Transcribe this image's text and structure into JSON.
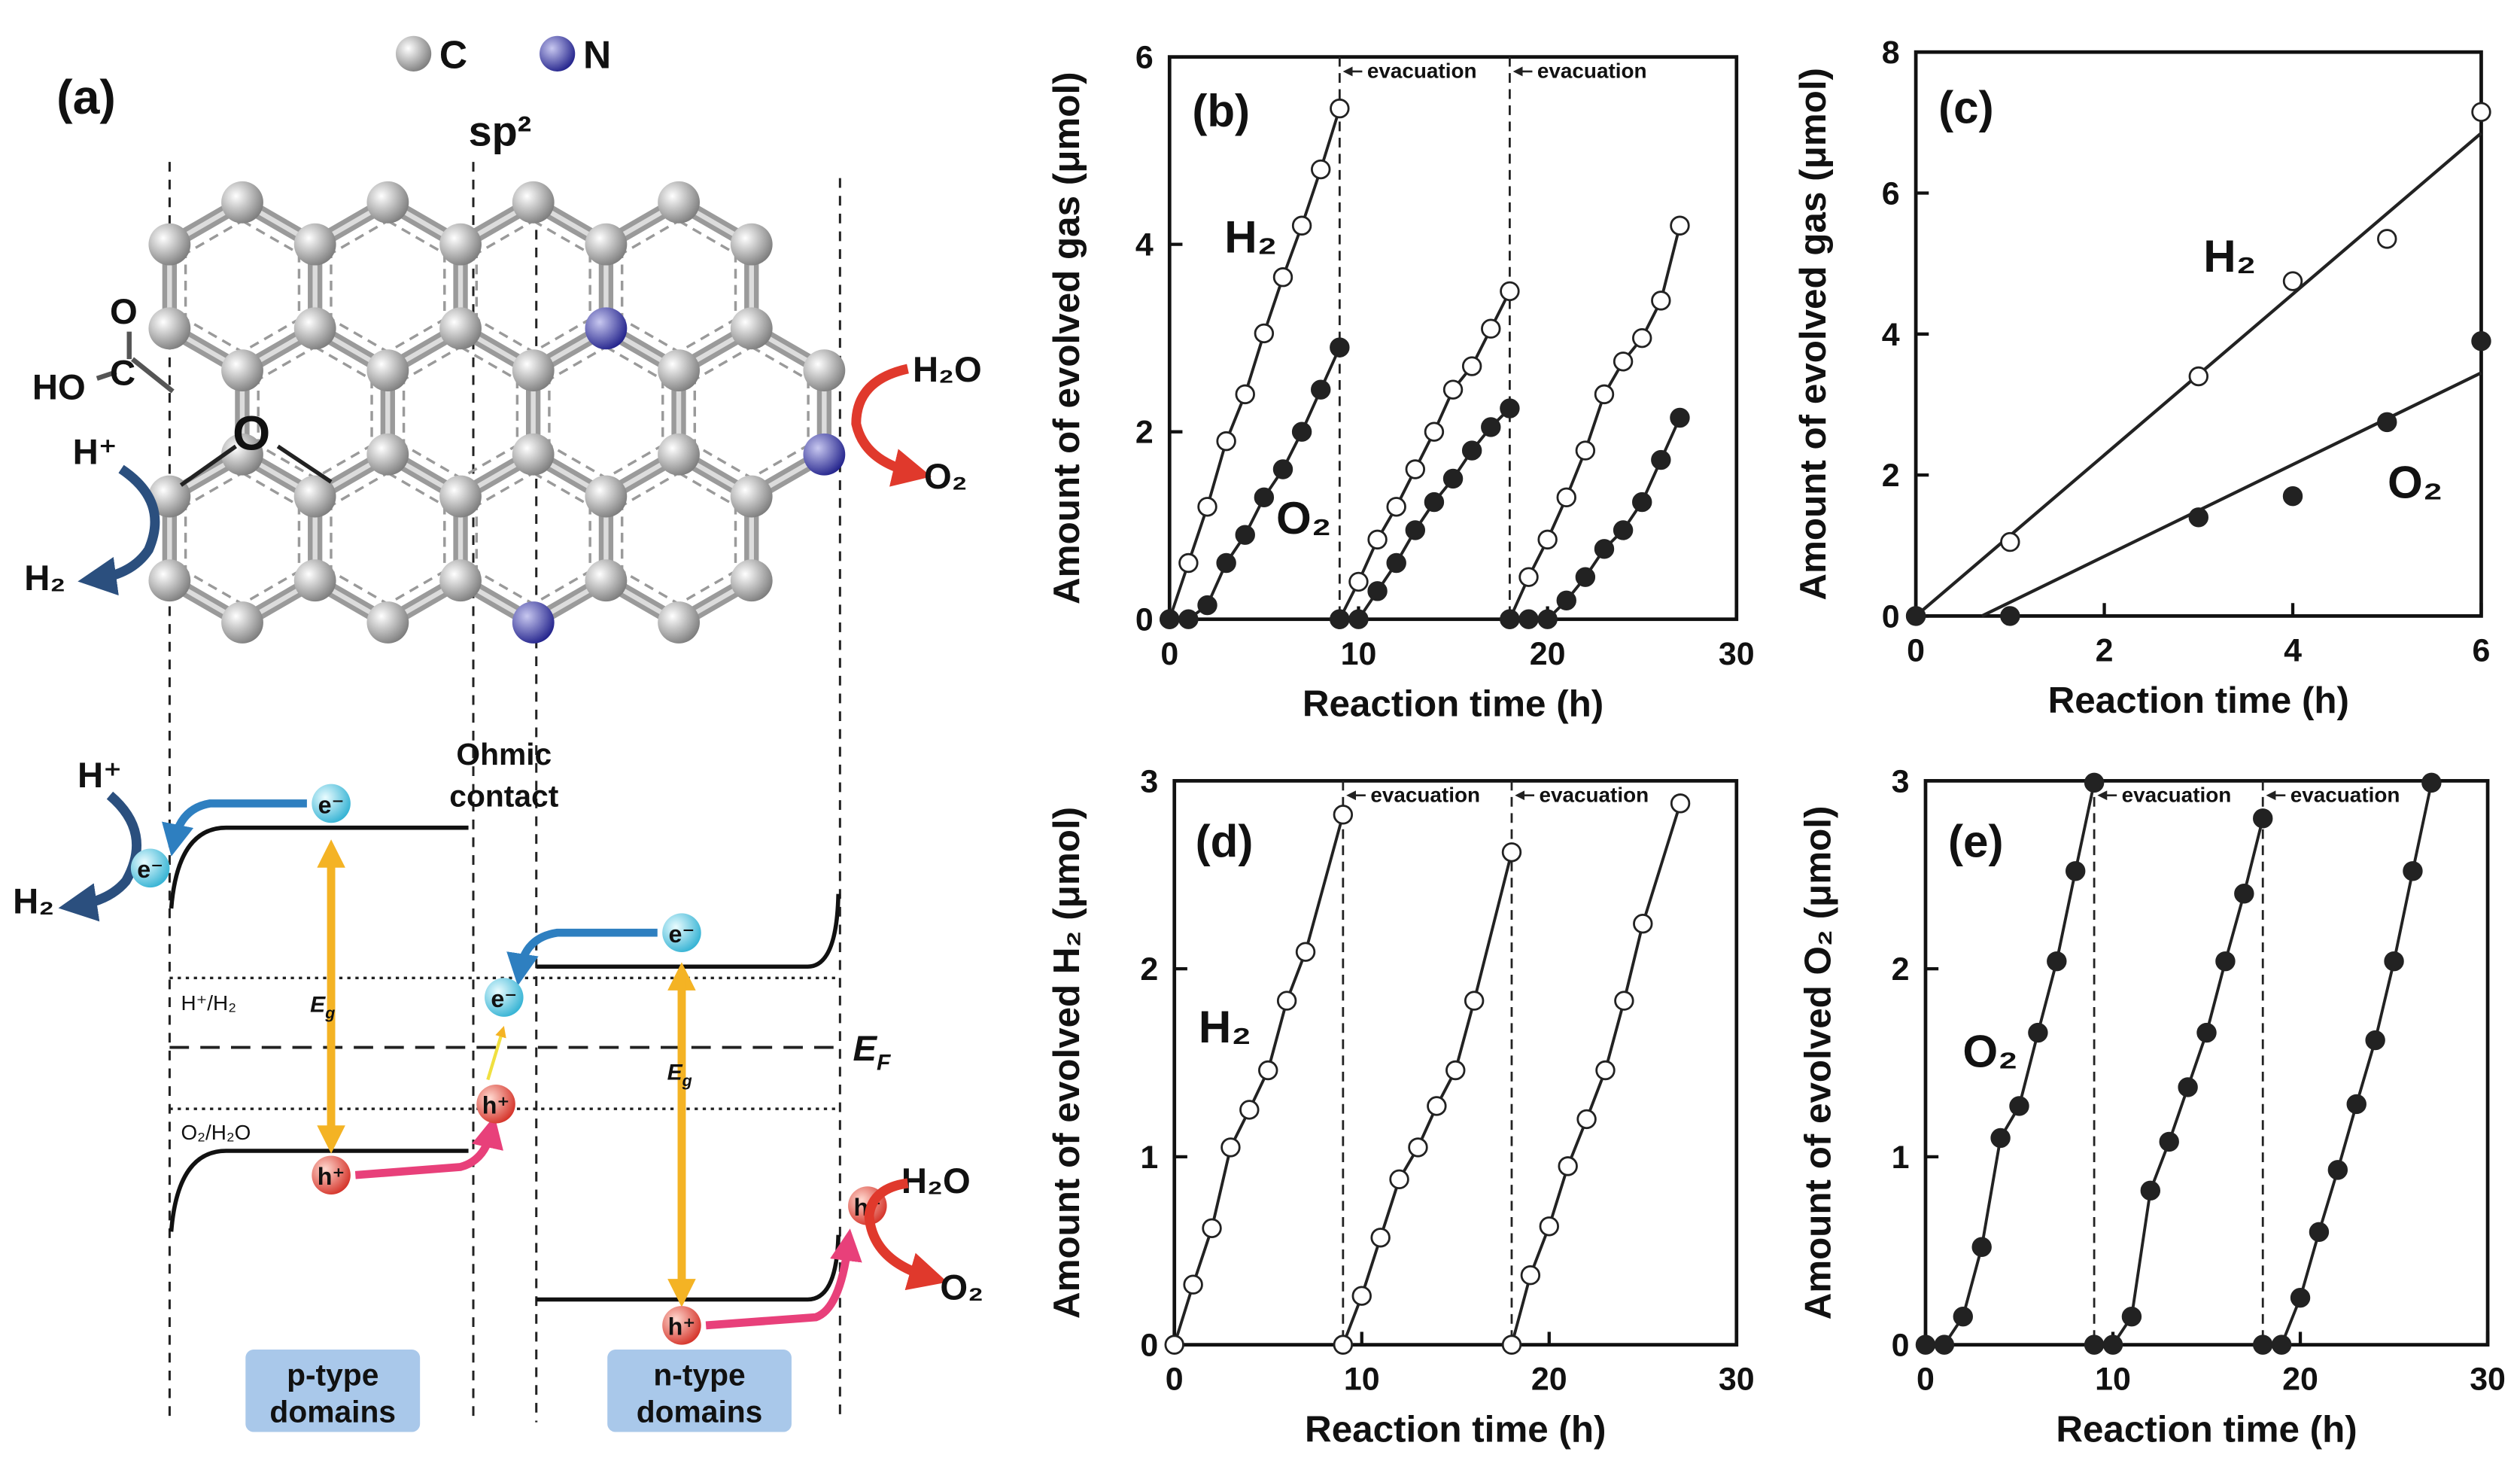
{
  "diagram": {
    "label": "(a)",
    "legend": {
      "c": "C",
      "n": "N"
    },
    "sp2": "sp²",
    "carboxyl": {
      "o": "O",
      "ho": "HO",
      "c": "C"
    },
    "epoxy": "O",
    "top_left": {
      "h_plus": "H⁺",
      "h2": "H₂"
    },
    "top_right": {
      "h2o": "H₂O",
      "o2": "O₂"
    },
    "ohmic": [
      "Ohmic",
      "contact"
    ],
    "band_left": {
      "h_plus": "H⁺",
      "h2": "H₂"
    },
    "electron": "e⁻",
    "hole": "h⁺",
    "h_level": "H⁺/H₂",
    "o_level": "O₂/H₂O",
    "gap": {
      "main": "E",
      "sub": "g"
    },
    "fermi": {
      "main": "E",
      "sub": "F"
    },
    "band_right": {
      "h2o": "H₂O",
      "o2": "O₂"
    },
    "p_domain": [
      "p-type",
      "domains"
    ],
    "n_domain": [
      "n-type",
      "domains"
    ]
  },
  "chart_data": [
    {
      "type": "scatter",
      "panel": "(b)",
      "xlabel": "Reaction time (h)",
      "ylabel": "Amount of evolved gas (μmol)",
      "xlim": [
        0,
        30
      ],
      "xticks": [
        0,
        10,
        20,
        30
      ],
      "ylim": [
        0,
        6
      ],
      "yticks": [
        0,
        2,
        4,
        6
      ],
      "series": [
        {
          "name": "H₂",
          "marker": "open",
          "color": "#222222",
          "x": [
            0,
            1,
            2,
            3,
            4,
            5,
            6,
            7,
            8,
            9,
            null,
            9,
            10,
            11,
            12,
            13,
            14,
            15,
            16,
            17,
            18,
            null,
            18,
            19,
            20,
            21,
            22,
            23,
            24,
            25,
            26,
            27
          ],
          "values": [
            0,
            0.6,
            1.2,
            1.9,
            2.4,
            3.05,
            3.65,
            4.2,
            4.8,
            5.45,
            null,
            0,
            0.4,
            0.85,
            1.2,
            1.6,
            2.0,
            2.45,
            2.7,
            3.1,
            3.5,
            null,
            0,
            0.45,
            0.85,
            1.3,
            1.8,
            2.4,
            2.75,
            3.0,
            3.4,
            4.2
          ]
        },
        {
          "name": "O₂",
          "marker": "filled",
          "color": "#222222",
          "x": [
            0,
            1,
            2,
            3,
            4,
            5,
            6,
            7,
            8,
            9,
            null,
            9,
            10,
            11,
            12,
            13,
            14,
            15,
            16,
            17,
            18,
            null,
            18,
            19,
            20,
            21,
            22,
            23,
            24,
            25,
            26,
            27
          ],
          "values": [
            0,
            0,
            0.15,
            0.6,
            0.9,
            1.3,
            1.6,
            2.0,
            2.45,
            2.9,
            null,
            0,
            0,
            0.3,
            0.6,
            0.95,
            1.25,
            1.5,
            1.8,
            2.05,
            2.25,
            null,
            0,
            0,
            0,
            0.2,
            0.45,
            0.75,
            0.95,
            1.25,
            1.7,
            2.15
          ]
        }
      ],
      "annotations": [
        {
          "text": "evacuation",
          "x": 9
        },
        {
          "text": "evacuation",
          "x": 18
        }
      ]
    },
    {
      "type": "scatter",
      "panel": "(c)",
      "xlabel": "Reaction time (h)",
      "ylabel": "Amount of evolved gas (μmol)",
      "xlim": [
        0,
        6
      ],
      "xticks": [
        0,
        2,
        4,
        6
      ],
      "ylim": [
        0,
        8
      ],
      "yticks": [
        0,
        2,
        4,
        6,
        8
      ],
      "series": [
        {
          "name": "H₂",
          "marker": "open",
          "color": "#222222",
          "x": [
            0,
            1,
            3,
            4,
            5,
            6
          ],
          "values": [
            0,
            1.05,
            3.4,
            4.75,
            5.35,
            7.15
          ],
          "fit": {
            "x": [
              0,
              6
            ],
            "values": [
              0,
              6.85
            ]
          }
        },
        {
          "name": "O₂",
          "marker": "filled",
          "color": "#222222",
          "x": [
            0,
            1,
            3,
            4,
            5,
            6
          ],
          "values": [
            0,
            0,
            1.4,
            1.7,
            2.75,
            3.9
          ],
          "fit": {
            "x": [
              0.7,
              6
            ],
            "values": [
              0,
              3.45
            ]
          }
        }
      ]
    },
    {
      "type": "scatter",
      "panel": "(d)",
      "xlabel": "Reaction time (h)",
      "ylabel": "Amount of evolved H₂ (μmol)",
      "xlim": [
        0,
        30
      ],
      "xticks": [
        0,
        10,
        20,
        30
      ],
      "ylim": [
        0,
        3
      ],
      "yticks": [
        0,
        1,
        2,
        3
      ],
      "series": [
        {
          "name": "H₂",
          "marker": "open",
          "color": "#222222",
          "x": [
            0,
            1,
            2,
            3,
            4,
            5,
            6,
            7,
            9,
            null,
            9,
            10,
            11,
            12,
            13,
            14,
            15,
            16,
            18,
            null,
            18,
            19,
            20,
            21,
            22,
            23,
            24,
            25,
            27
          ],
          "values": [
            0,
            0.32,
            0.62,
            1.05,
            1.25,
            1.46,
            1.83,
            2.09,
            2.82,
            null,
            0,
            0.26,
            0.57,
            0.88,
            1.05,
            1.27,
            1.46,
            1.83,
            2.62,
            null,
            0,
            0.37,
            0.63,
            0.95,
            1.2,
            1.46,
            1.83,
            2.24,
            2.88
          ]
        }
      ],
      "annotations": [
        {
          "text": "evacuation",
          "x": 9
        },
        {
          "text": "evacuation",
          "x": 18
        }
      ]
    },
    {
      "type": "scatter",
      "panel": "(e)",
      "xlabel": "Reaction time (h)",
      "ylabel": "Amount of evolved O₂ (μmol)",
      "xlim": [
        0,
        30
      ],
      "xticks": [
        0,
        10,
        20,
        30
      ],
      "ylim": [
        0,
        3
      ],
      "yticks": [
        0,
        1,
        2,
        3
      ],
      "series": [
        {
          "name": "O₂",
          "marker": "filled",
          "color": "#222222",
          "x": [
            0,
            1,
            2,
            3,
            4,
            5,
            6,
            7,
            8,
            9,
            null,
            9,
            10,
            11,
            12,
            13,
            14,
            15,
            16,
            17,
            18,
            null,
            18,
            19,
            20,
            21,
            22,
            23,
            24,
            25,
            26,
            27
          ],
          "values": [
            0,
            0,
            0.15,
            0.52,
            1.1,
            1.27,
            1.66,
            2.04,
            2.52,
            2.99,
            null,
            0,
            0,
            0.15,
            0.82,
            1.08,
            1.37,
            1.66,
            2.04,
            2.4,
            2.8,
            null,
            0,
            0,
            0.25,
            0.6,
            0.93,
            1.28,
            1.62,
            2.04,
            2.52,
            2.99
          ]
        }
      ],
      "annotations": [
        {
          "text": "evacuation",
          "x": 9
        },
        {
          "text": "evacuation",
          "x": 18
        }
      ]
    }
  ]
}
